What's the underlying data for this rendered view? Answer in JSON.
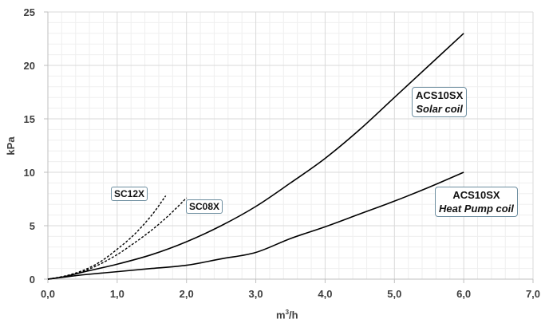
{
  "chart_data": {
    "type": "line",
    "xlabel_base": "m",
    "xlabel_exp": "3",
    "xlabel_tail": "/h",
    "ylabel": "kPa",
    "xlim": [
      0,
      7
    ],
    "ylim": [
      0,
      25
    ],
    "x_ticks": [
      "0,0",
      "1,0",
      "2,0",
      "3,0",
      "4,0",
      "5,0",
      "6,0",
      "7,0"
    ],
    "y_ticks": [
      "0",
      "5",
      "10",
      "15",
      "20",
      "25"
    ],
    "grid": true,
    "series": [
      {
        "name": "ACS10SX Solar coil",
        "style": "solid",
        "x": [
          0,
          0.25,
          0.5,
          1.0,
          1.5,
          2.0,
          2.5,
          3.0,
          3.5,
          4.0,
          4.5,
          5.0,
          5.5,
          6.0
        ],
        "y": [
          0,
          0.25,
          0.65,
          1.4,
          2.3,
          3.5,
          5.0,
          6.8,
          9.0,
          11.3,
          14.0,
          17.0,
          20.0,
          23.0
        ]
      },
      {
        "name": "ACS10SX Heat Pump coil",
        "style": "solid",
        "x": [
          0,
          0.25,
          0.5,
          1.0,
          1.5,
          2.0,
          2.5,
          3.0,
          3.5,
          4.0,
          4.5,
          5.0,
          5.5,
          6.0
        ],
        "y": [
          0,
          0.2,
          0.4,
          0.7,
          1.0,
          1.3,
          1.9,
          2.5,
          3.8,
          4.9,
          6.1,
          7.3,
          8.6,
          10.0
        ]
      },
      {
        "name": "SC12X",
        "style": "dashed",
        "x": [
          0,
          0.25,
          0.5,
          0.75,
          1.0,
          1.25,
          1.5,
          1.7
        ],
        "y": [
          0,
          0.3,
          0.8,
          1.6,
          2.8,
          4.2,
          6.0,
          7.8
        ]
      },
      {
        "name": "SC08X",
        "style": "dashed",
        "x": [
          0,
          0.25,
          0.5,
          0.75,
          1.0,
          1.25,
          1.5,
          1.75,
          2.0
        ],
        "y": [
          0,
          0.25,
          0.7,
          1.4,
          2.3,
          3.4,
          4.6,
          6.0,
          7.6
        ]
      }
    ]
  },
  "labels": {
    "solar_line1": "ACS10SX",
    "solar_line2": "Solar coil",
    "hp_line1": "ACS10SX",
    "hp_line2": "Heat Pump coil",
    "sc12": "SC12X",
    "sc08": "SC08X"
  },
  "colors": {
    "line": "#000000",
    "grid_major": "#d9d9d9",
    "grid_minor": "#efefef",
    "axis": "#bfbfbf",
    "text": "#404040",
    "label_border": "#6d8ea0"
  }
}
